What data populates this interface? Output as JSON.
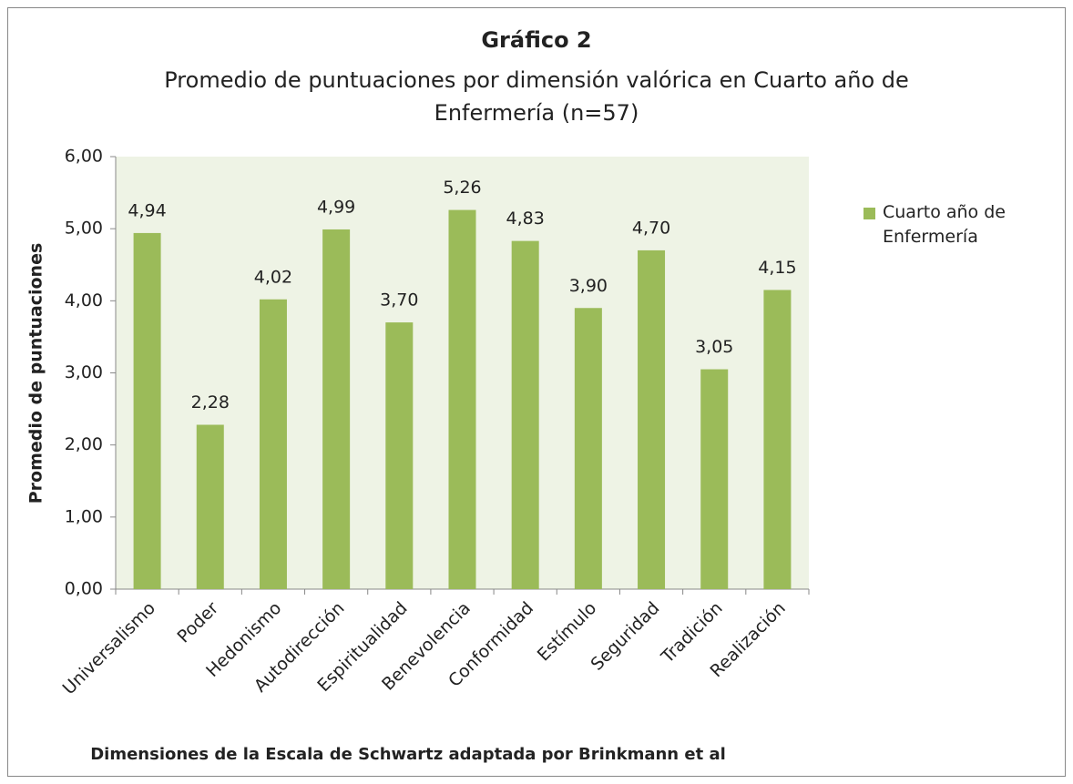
{
  "chart_data": {
    "type": "bar",
    "title": "Gráfico 2",
    "subtitle": "Promedio de puntuaciones por dimensión valórica en Cuarto año de Enfermería (n=57)",
    "x_label": "Dimensiones de la Escala de Schwartz adaptada por Brinkmann et al",
    "y_label": "Promedio de puntuaciones",
    "categories": [
      "Universalismo",
      "Poder",
      "Hedonismo",
      "Autodirección",
      "Espiritualidad",
      "Benevolencia",
      "Conformidad",
      "Estímulo",
      "Seguridad",
      "Tradición",
      "Realización"
    ],
    "series": [
      {
        "name": "Cuarto año de Enfermería",
        "color": "#9bbb59",
        "values": [
          4.94,
          2.28,
          4.02,
          4.99,
          3.7,
          5.26,
          4.83,
          3.9,
          4.7,
          3.05,
          4.15
        ],
        "value_labels": [
          "4,94",
          "2,28",
          "4,02",
          "4,99",
          "3,70",
          "5,26",
          "4,83",
          "3,90",
          "4,70",
          "3,05",
          "4,15"
        ]
      }
    ],
    "ylim": [
      0,
      6
    ],
    "yticks": [
      {
        "value": 0,
        "label": "0,00"
      },
      {
        "value": 1,
        "label": "1,00"
      },
      {
        "value": 2,
        "label": "2,00"
      },
      {
        "value": 3,
        "label": "3,00"
      },
      {
        "value": 4,
        "label": "4,00"
      },
      {
        "value": 5,
        "label": "5,00"
      },
      {
        "value": 6,
        "label": "6,00"
      }
    ],
    "legend": "right"
  }
}
